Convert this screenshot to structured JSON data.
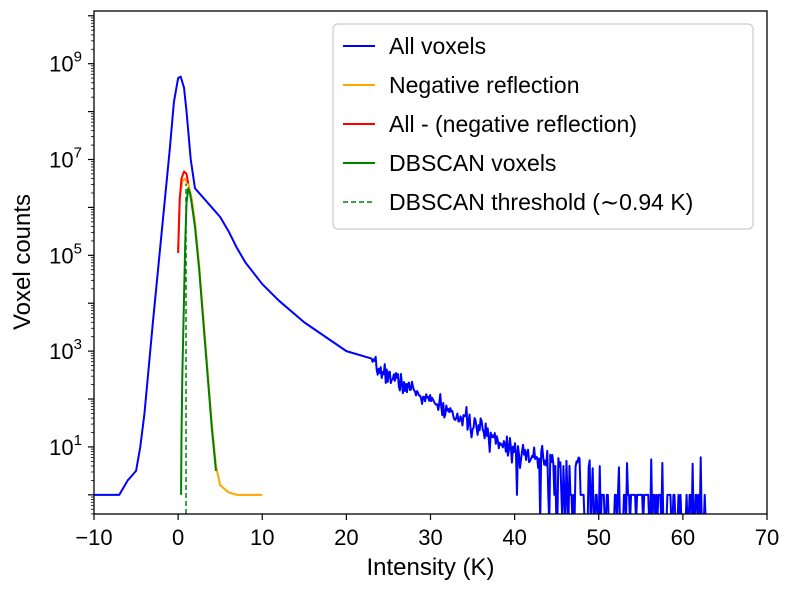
{
  "chart_data": {
    "type": "line",
    "xlabel": "Intensity (K)",
    "ylabel": "Voxel counts",
    "xlim": [
      -10,
      70
    ],
    "ylim_log10": [
      -0.4,
      10.1
    ],
    "yscale": "log",
    "x_ticks": [
      -10,
      0,
      10,
      20,
      30,
      40,
      50,
      60,
      70
    ],
    "x_tick_labels": [
      "−10",
      "0",
      "10",
      "20",
      "30",
      "40",
      "50",
      "60",
      "70"
    ],
    "y_ticks": [
      {
        "base": "10",
        "exp": "1",
        "log10": 1
      },
      {
        "base": "10",
        "exp": "3",
        "log10": 3
      },
      {
        "base": "10",
        "exp": "5",
        "log10": 5
      },
      {
        "base": "10",
        "exp": "7",
        "log10": 7
      },
      {
        "base": "10",
        "exp": "9",
        "log10": 9
      }
    ],
    "legend_position": "top-right",
    "series": [
      {
        "name": "All voxels",
        "color": "#0000ff",
        "style": "solid",
        "noisy_tail": {
          "from_x": 23,
          "to_x": 63.5,
          "sigma_log10": 0.1,
          "seed": 7
        },
        "points": [
          [
            -10,
            0
          ],
          [
            -7,
            0
          ],
          [
            -6,
            0.3
          ],
          [
            -5,
            0.5
          ],
          [
            -4.5,
            1.0
          ],
          [
            -4,
            1.7
          ],
          [
            -3,
            3.6
          ],
          [
            -2,
            5.4
          ],
          [
            -1,
            7.2
          ],
          [
            -0.5,
            8.2
          ],
          [
            0,
            8.7
          ],
          [
            0.3,
            8.73
          ],
          [
            0.7,
            8.5
          ],
          [
            1,
            8.0
          ],
          [
            1.5,
            7.0
          ],
          [
            2,
            6.4
          ],
          [
            3,
            6.2
          ],
          [
            4,
            6.0
          ],
          [
            5,
            5.8
          ],
          [
            6,
            5.5
          ],
          [
            7,
            5.15
          ],
          [
            8,
            4.85
          ],
          [
            10,
            4.4
          ],
          [
            12,
            4.05
          ],
          [
            15,
            3.6
          ],
          [
            20,
            3.0
          ],
          [
            25,
            2.5
          ],
          [
            30,
            1.95
          ],
          [
            35,
            1.45
          ],
          [
            40,
            0.95
          ],
          [
            45,
            0.55
          ],
          [
            50,
            0.3
          ],
          [
            55,
            0.15
          ],
          [
            60,
            0.05
          ],
          [
            63.5,
            0
          ]
        ]
      },
      {
        "name": "Negative reflection",
        "color": "#ffa500",
        "style": "solid",
        "points": [
          [
            0,
            5.05
          ],
          [
            0.2,
            6.2
          ],
          [
            0.5,
            6.55
          ],
          [
            0.8,
            6.6
          ],
          [
            1.2,
            6.5
          ],
          [
            1.6,
            6.2
          ],
          [
            2,
            5.7
          ],
          [
            2.5,
            4.8
          ],
          [
            3,
            3.7
          ],
          [
            3.5,
            2.6
          ],
          [
            4,
            1.5
          ],
          [
            4.5,
            0.6
          ],
          [
            5,
            0.2
          ],
          [
            6,
            0.05
          ],
          [
            7,
            0
          ],
          [
            10,
            0
          ]
        ]
      },
      {
        "name": "All - (negative reflection)",
        "color": "#ff0000",
        "style": "solid",
        "points": [
          [
            0,
            5.05
          ],
          [
            0.1,
            5.7
          ],
          [
            0.2,
            6.2
          ],
          [
            0.4,
            6.6
          ],
          [
            0.7,
            6.75
          ],
          [
            1.0,
            6.7
          ],
          [
            1.2,
            6.5
          ]
        ]
      },
      {
        "name": "DBSCAN voxels",
        "color": "#008000",
        "style": "solid",
        "points": [
          [
            0.35,
            0
          ],
          [
            0.4,
            1.2
          ],
          [
            0.5,
            2.5
          ],
          [
            0.65,
            3.7
          ],
          [
            0.85,
            5.3
          ],
          [
            1.0,
            6.1
          ],
          [
            1.2,
            6.4
          ],
          [
            1.4,
            6.3
          ],
          [
            1.6,
            6.1
          ],
          [
            2,
            5.6
          ],
          [
            2.5,
            4.7
          ],
          [
            3,
            3.6
          ],
          [
            3.5,
            2.5
          ],
          [
            4,
            1.4
          ],
          [
            4.5,
            0.5
          ]
        ]
      },
      {
        "name": "DBSCAN threshold (∼0.94 K)",
        "color": "#008000",
        "style": "dashed",
        "points": [
          [
            0.94,
            -0.4
          ],
          [
            0.94,
            6.5
          ]
        ]
      }
    ]
  }
}
